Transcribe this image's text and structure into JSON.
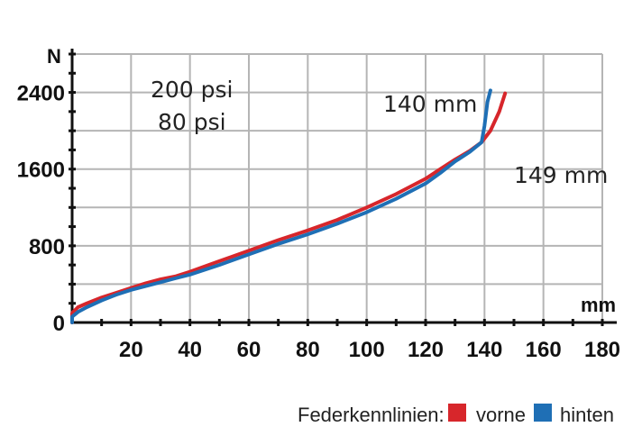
{
  "chart_data": {
    "type": "line",
    "title": "",
    "xlabel": "mm",
    "ylabel": "N",
    "xlim": [
      0,
      180
    ],
    "ylim": [
      0,
      2800
    ],
    "x_ticks": [
      20,
      40,
      60,
      80,
      100,
      120,
      140,
      160,
      180
    ],
    "y_ticks": [
      0,
      800,
      1600,
      2400
    ],
    "grid": true,
    "series": [
      {
        "name": "vorne",
        "pressure_label": "200 psi",
        "color": "#d7262b",
        "points": [
          [
            0,
            0
          ],
          [
            0,
            100
          ],
          [
            2,
            160
          ],
          [
            5,
            200
          ],
          [
            10,
            260
          ],
          [
            15,
            310
          ],
          [
            20,
            360
          ],
          [
            25,
            410
          ],
          [
            30,
            450
          ],
          [
            35,
            480
          ],
          [
            40,
            530
          ],
          [
            50,
            640
          ],
          [
            60,
            750
          ],
          [
            70,
            860
          ],
          [
            80,
            960
          ],
          [
            90,
            1070
          ],
          [
            100,
            1200
          ],
          [
            110,
            1340
          ],
          [
            120,
            1500
          ],
          [
            125,
            1600
          ],
          [
            130,
            1700
          ],
          [
            135,
            1790
          ],
          [
            139,
            1880
          ],
          [
            142,
            2000
          ],
          [
            145,
            2200
          ],
          [
            147,
            2390
          ]
        ]
      },
      {
        "name": "hinten",
        "pressure_label": "80 psi",
        "color": "#1f6fb5",
        "points": [
          [
            0,
            0
          ],
          [
            0,
            60
          ],
          [
            2,
            110
          ],
          [
            5,
            160
          ],
          [
            10,
            230
          ],
          [
            15,
            290
          ],
          [
            20,
            340
          ],
          [
            25,
            380
          ],
          [
            30,
            420
          ],
          [
            35,
            460
          ],
          [
            40,
            500
          ],
          [
            50,
            600
          ],
          [
            60,
            710
          ],
          [
            70,
            820
          ],
          [
            80,
            920
          ],
          [
            90,
            1030
          ],
          [
            100,
            1150
          ],
          [
            110,
            1290
          ],
          [
            120,
            1450
          ],
          [
            125,
            1560
          ],
          [
            130,
            1680
          ],
          [
            135,
            1780
          ],
          [
            139,
            1880
          ],
          [
            140,
            2050
          ],
          [
            141,
            2300
          ],
          [
            142,
            2420
          ]
        ]
      }
    ],
    "annotations": [
      {
        "text": "140 mm",
        "target_x": 140
      },
      {
        "text": "149 mm",
        "target_x": 149
      }
    ],
    "legend": {
      "title": "Federkennlinien:",
      "position": "bottom-right"
    }
  }
}
